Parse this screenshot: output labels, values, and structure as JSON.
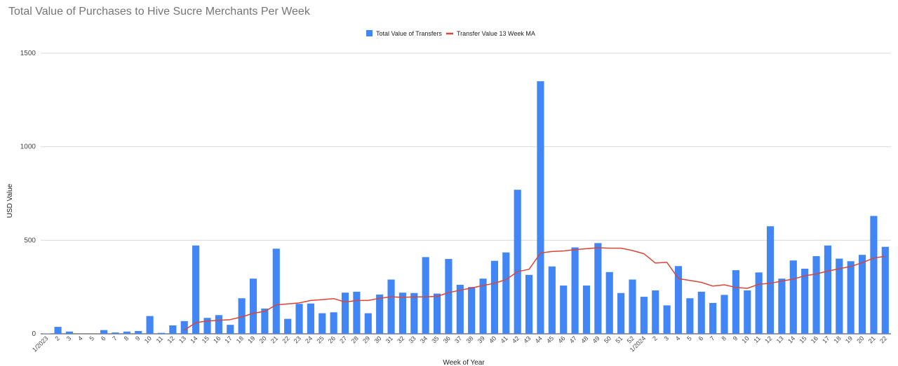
{
  "chart_data": {
    "type": "bar",
    "title": "Total Value of Purchases to Hive Sucre Merchants Per Week",
    "xlabel": "Week of Year",
    "ylabel": "USD Value",
    "ylim": [
      0,
      1500
    ],
    "yticks": [
      "0",
      "500",
      "1000",
      "1500"
    ],
    "grid": true,
    "legend_position": "top",
    "categories": [
      "1/2023",
      "2",
      "3",
      "4",
      "5",
      "6",
      "7",
      "8",
      "9",
      "10",
      "11",
      "12",
      "13",
      "14",
      "15",
      "16",
      "17",
      "18",
      "19",
      "20",
      "21",
      "22",
      "23",
      "24",
      "25",
      "26",
      "27",
      "28",
      "29",
      "30",
      "31",
      "32",
      "33",
      "34",
      "35",
      "36",
      "37",
      "38",
      "39",
      "40",
      "41",
      "42",
      "43",
      "44",
      "45",
      "46",
      "47",
      "48",
      "49",
      "50",
      "51",
      "52",
      "1/2024",
      "2",
      "3",
      "4",
      "5",
      "6",
      "7",
      "8",
      "9",
      "10",
      "11",
      "12",
      "13",
      "14",
      "15",
      "16",
      "17",
      "18",
      "19",
      "20",
      "21",
      "22"
    ],
    "series": [
      {
        "name": "Total Value of Transfers",
        "type": "bar",
        "color": "#4285f4",
        "values": [
          2,
          37,
          12,
          0,
          0,
          20,
          7,
          12,
          15,
          95,
          5,
          45,
          68,
          472,
          85,
          100,
          48,
          190,
          295,
          135,
          455,
          80,
          160,
          162,
          110,
          115,
          220,
          225,
          110,
          210,
          290,
          220,
          218,
          410,
          215,
          400,
          262,
          250,
          295,
          390,
          435,
          770,
          315,
          1350,
          360,
          258,
          462,
          258,
          485,
          330,
          218,
          290,
          198,
          232,
          152,
          362,
          190,
          225,
          165,
          208,
          340,
          232,
          328,
          575,
          295,
          392,
          348,
          415,
          472,
          402,
          388,
          422,
          630,
          465
        ]
      },
      {
        "name": "Transfer Value 13 Week MA",
        "type": "line",
        "color": "#db4437",
        "values": [
          null,
          null,
          null,
          null,
          null,
          null,
          null,
          null,
          null,
          null,
          null,
          null,
          20,
          60,
          68,
          72,
          76,
          90,
          110,
          120,
          155,
          160,
          165,
          178,
          183,
          188,
          170,
          178,
          178,
          190,
          198,
          195,
          197,
          198,
          200,
          220,
          233,
          245,
          258,
          270,
          290,
          332,
          345,
          432,
          440,
          443,
          450,
          455,
          460,
          458,
          458,
          445,
          428,
          378,
          382,
          295,
          285,
          275,
          255,
          262,
          248,
          243,
          265,
          270,
          282,
          293,
          310,
          320,
          335,
          348,
          360,
          380,
          405,
          415
        ]
      }
    ]
  }
}
